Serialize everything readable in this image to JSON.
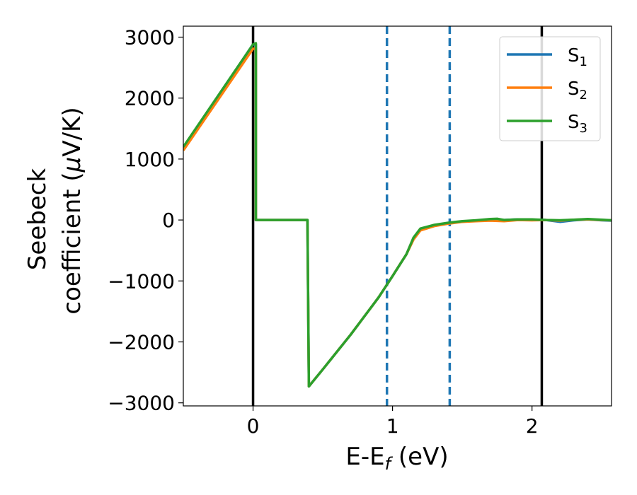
{
  "chart_data": {
    "type": "line",
    "title": "",
    "xlabel": "E-E",
    "xlabel_sub": "f",
    "xlabel_unit": " (eV)",
    "ylabel_line1": "Seebeck",
    "ylabel_line2": "coefficient  (",
    "ylabel_mu": "μ",
    "ylabel_unit": "V/K)",
    "xlim": [
      -0.5,
      2.57
    ],
    "ylim": [
      -3050,
      3180
    ],
    "x_ticks": [
      0,
      1,
      2
    ],
    "x_tick_labels": [
      "0",
      "1",
      "2"
    ],
    "y_ticks": [
      3000,
      2000,
      1000,
      0,
      -1000,
      -2000,
      -3000
    ],
    "y_tick_labels": [
      "3000",
      "2000",
      "1000",
      "0",
      "−1000",
      "−2000",
      "−3000"
    ],
    "grid": false,
    "legend_position": "top-right",
    "vertical_lines": [
      {
        "x": 0.0,
        "style": "solid",
        "color": "#000000"
      },
      {
        "x": 0.96,
        "style": "dashed",
        "color": "#1f77b4"
      },
      {
        "x": 1.41,
        "style": "dashed",
        "color": "#1f77b4"
      },
      {
        "x": 2.07,
        "style": "solid",
        "color": "#000000"
      }
    ],
    "series": [
      {
        "name": "S",
        "sub": "1",
        "color": "#1f77b4",
        "points": [
          [
            -0.5,
            1190
          ],
          [
            0.0,
            2880
          ],
          [
            0.02,
            2880
          ],
          [
            0.02,
            0
          ],
          [
            0.39,
            0
          ],
          [
            0.4,
            -2730
          ],
          [
            0.5,
            -2450
          ],
          [
            0.7,
            -1880
          ],
          [
            0.9,
            -1270
          ],
          [
            1.0,
            -920
          ],
          [
            1.1,
            -560
          ],
          [
            1.15,
            -300
          ],
          [
            1.2,
            -150
          ],
          [
            1.3,
            -90
          ],
          [
            1.4,
            -50
          ],
          [
            1.5,
            -25
          ],
          [
            1.6,
            -10
          ],
          [
            1.7,
            10
          ],
          [
            1.8,
            0
          ],
          [
            1.9,
            10
          ],
          [
            2.0,
            5
          ],
          [
            2.1,
            0
          ],
          [
            2.2,
            -30
          ],
          [
            2.3,
            -5
          ],
          [
            2.4,
            10
          ],
          [
            2.5,
            -5
          ],
          [
            2.57,
            -10
          ]
        ]
      },
      {
        "name": "S",
        "sub": "2",
        "color": "#ff7f0e",
        "points": [
          [
            -0.5,
            1140
          ],
          [
            0.0,
            2810
          ],
          [
            0.02,
            2810
          ],
          [
            0.02,
            0
          ],
          [
            0.39,
            0
          ],
          [
            0.4,
            -2730
          ],
          [
            0.5,
            -2450
          ],
          [
            0.7,
            -1880
          ],
          [
            0.9,
            -1270
          ],
          [
            1.0,
            -920
          ],
          [
            1.1,
            -560
          ],
          [
            1.15,
            -320
          ],
          [
            1.2,
            -170
          ],
          [
            1.3,
            -100
          ],
          [
            1.4,
            -60
          ],
          [
            1.5,
            -30
          ],
          [
            1.6,
            -20
          ],
          [
            1.7,
            -10
          ],
          [
            1.8,
            -20
          ],
          [
            1.9,
            0
          ],
          [
            2.0,
            -5
          ],
          [
            2.1,
            0
          ],
          [
            2.2,
            -10
          ],
          [
            2.3,
            5
          ],
          [
            2.4,
            10
          ],
          [
            2.5,
            0
          ],
          [
            2.57,
            -5
          ]
        ]
      },
      {
        "name": "S",
        "sub": "3",
        "color": "#2ca02c",
        "points": [
          [
            -0.5,
            1200
          ],
          [
            0.0,
            2880
          ],
          [
            0.02,
            2900
          ],
          [
            0.02,
            0
          ],
          [
            0.39,
            0
          ],
          [
            0.4,
            -2730
          ],
          [
            0.5,
            -2450
          ],
          [
            0.7,
            -1880
          ],
          [
            0.9,
            -1270
          ],
          [
            1.0,
            -920
          ],
          [
            1.1,
            -560
          ],
          [
            1.15,
            -290
          ],
          [
            1.2,
            -140
          ],
          [
            1.3,
            -80
          ],
          [
            1.4,
            -45
          ],
          [
            1.5,
            -20
          ],
          [
            1.6,
            -5
          ],
          [
            1.7,
            15
          ],
          [
            1.75,
            20
          ],
          [
            1.8,
            0
          ],
          [
            1.9,
            10
          ],
          [
            2.0,
            10
          ],
          [
            2.1,
            0
          ],
          [
            2.2,
            -5
          ],
          [
            2.3,
            5
          ],
          [
            2.4,
            15
          ],
          [
            2.5,
            5
          ],
          [
            2.57,
            -5
          ]
        ]
      }
    ]
  }
}
